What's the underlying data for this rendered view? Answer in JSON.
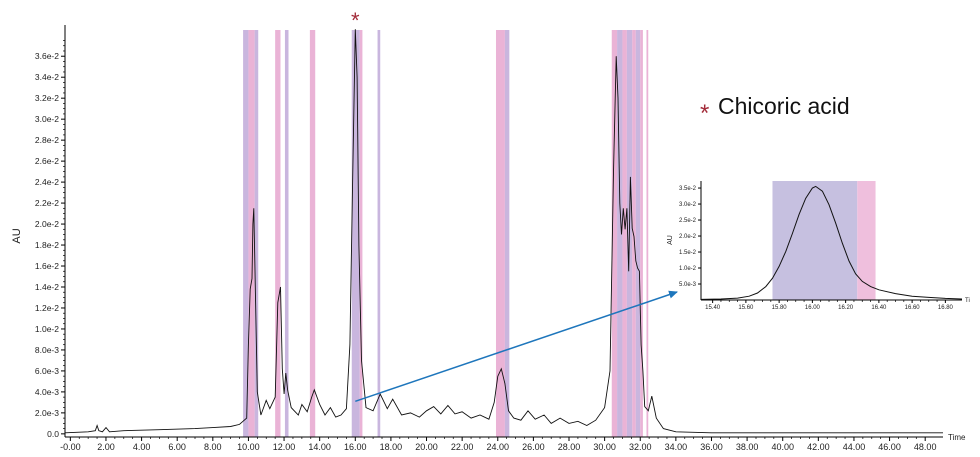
{
  "chart_data": [
    {
      "type": "line",
      "title": "",
      "xlabel": "Time",
      "ylabel": "AU",
      "xlim": [
        -0.3,
        49.0
      ],
      "ylim": [
        -0.0003,
        0.0385
      ],
      "x_ticks": [
        -0.0,
        2.0,
        4.0,
        6.0,
        8.0,
        10.0,
        12.0,
        14.0,
        16.0,
        18.0,
        20.0,
        22.0,
        24.0,
        26.0,
        28.0,
        30.0,
        32.0,
        34.0,
        36.0,
        38.0,
        40.0,
        42.0,
        44.0,
        46.0,
        48.0
      ],
      "x_tick_labels": [
        "-0.00",
        "2.00",
        "4.00",
        "6.00",
        "8.00",
        "10.00",
        "12.00",
        "14.00",
        "16.00",
        "18.00",
        "20.00",
        "22.00",
        "24.00",
        "26.00",
        "28.00",
        "30.00",
        "32.00",
        "34.00",
        "36.00",
        "38.00",
        "40.00",
        "42.00",
        "44.00",
        "46.00",
        "48.00"
      ],
      "y_ticks": [
        0.0,
        0.002,
        0.004,
        0.006,
        0.008,
        0.01,
        0.012,
        0.014,
        0.016,
        0.018,
        0.02,
        0.022,
        0.024,
        0.026,
        0.028,
        0.03,
        0.032,
        0.034,
        0.036
      ],
      "y_tick_labels": [
        "0.0",
        "2.0e-3",
        "4.0e-3",
        "6.0e-3",
        "8.0e-3",
        "1.0e-2",
        "1.2e-2",
        "1.4e-2",
        "1.6e-2",
        "1.8e-2",
        "2.0e-2",
        "2.2e-2",
        "2.4e-2",
        "2.6e-2",
        "2.8e-2",
        "3.0e-2",
        "3.2e-2",
        "3.4e-2",
        "3.6e-2"
      ],
      "series": [
        {
          "name": "",
          "color": "#111111",
          "x": [
            -0.3,
            1.0,
            1.4,
            1.5,
            1.6,
            1.8,
            2.0,
            2.2,
            3.0,
            5.0,
            7.0,
            8.0,
            9.0,
            9.5,
            9.9,
            10.0,
            10.1,
            10.2,
            10.25,
            10.3,
            10.4,
            10.5,
            10.7,
            11.0,
            11.2,
            11.5,
            11.65,
            11.8,
            11.9,
            12.0,
            12.1,
            12.2,
            12.4,
            12.8,
            13.0,
            13.3,
            13.55,
            13.7,
            14.0,
            14.3,
            14.6,
            14.9,
            15.2,
            15.5,
            15.7,
            15.85,
            16.0,
            16.1,
            16.2,
            16.35,
            16.6,
            17.0,
            17.4,
            17.8,
            18.1,
            18.6,
            19.1,
            19.6,
            20.0,
            20.4,
            20.8,
            21.2,
            21.6,
            22.0,
            22.5,
            23.0,
            23.5,
            23.8,
            24.0,
            24.2,
            24.4,
            24.6,
            24.9,
            25.3,
            25.7,
            26.1,
            26.6,
            27.0,
            27.5,
            28.0,
            28.5,
            29.0,
            29.5,
            30.0,
            30.3,
            30.5,
            30.65,
            30.75,
            30.85,
            30.95,
            31.05,
            31.15,
            31.25,
            31.35,
            31.45,
            31.55,
            31.65,
            31.75,
            31.85,
            31.95,
            32.05,
            32.15,
            32.25,
            32.45,
            32.65,
            32.9,
            33.3,
            34.0,
            36.0,
            40.0,
            44.0,
            48.0,
            49.0
          ],
          "y": [
            0.0001,
            0.0002,
            0.0003,
            0.0008,
            0.0003,
            0.0002,
            0.0006,
            0.0002,
            0.0003,
            0.0004,
            0.0005,
            0.0006,
            0.0007,
            0.0009,
            0.0015,
            0.0085,
            0.0138,
            0.0148,
            0.02,
            0.0215,
            0.0125,
            0.004,
            0.0018,
            0.0032,
            0.0024,
            0.0035,
            0.0125,
            0.014,
            0.0062,
            0.0038,
            0.0058,
            0.0042,
            0.0025,
            0.0018,
            0.0028,
            0.0021,
            0.0035,
            0.0042,
            0.0028,
            0.0018,
            0.0025,
            0.0016,
            0.0018,
            0.0024,
            0.0085,
            0.024,
            0.0418,
            0.034,
            0.018,
            0.007,
            0.0025,
            0.0022,
            0.0038,
            0.0024,
            0.0033,
            0.0018,
            0.002,
            0.0016,
            0.0022,
            0.0026,
            0.0019,
            0.0027,
            0.0019,
            0.0021,
            0.0015,
            0.0018,
            0.0014,
            0.003,
            0.0055,
            0.0062,
            0.0048,
            0.0022,
            0.0015,
            0.0013,
            0.0022,
            0.0014,
            0.0018,
            0.001,
            0.0015,
            0.001,
            0.0012,
            0.0008,
            0.0013,
            0.0025,
            0.006,
            0.025,
            0.036,
            0.032,
            0.022,
            0.019,
            0.0215,
            0.0195,
            0.0215,
            0.0155,
            0.0245,
            0.0196,
            0.0188,
            0.0165,
            0.0158,
            0.0155,
            0.0085,
            0.006,
            0.0026,
            0.0022,
            0.0036,
            0.0015,
            0.0005,
            0.0002,
            0.0001,
            0.0001,
            0.0001,
            0.0001,
            0.0001
          ]
        }
      ],
      "highlight_bands": [
        {
          "x0": 9.7,
          "x1": 10.0,
          "color": "#bfa9d8"
        },
        {
          "x0": 10.0,
          "x1": 10.35,
          "color": "#e6a6cf"
        },
        {
          "x0": 10.35,
          "x1": 10.55,
          "color": "#bfa9d8"
        },
        {
          "x0": 11.5,
          "x1": 11.8,
          "color": "#e6a6cf"
        },
        {
          "x0": 12.05,
          "x1": 12.25,
          "color": "#bfa9d8"
        },
        {
          "x0": 13.45,
          "x1": 13.75,
          "color": "#e6a6cf"
        },
        {
          "x0": 15.8,
          "x1": 16.25,
          "color": "#bfa9d8"
        },
        {
          "x0": 16.25,
          "x1": 16.4,
          "color": "#e6a6cf"
        },
        {
          "x0": 17.25,
          "x1": 17.4,
          "color": "#bfa9d8"
        },
        {
          "x0": 23.9,
          "x1": 24.4,
          "color": "#e6a6cf"
        },
        {
          "x0": 24.4,
          "x1": 24.65,
          "color": "#bfa9d8"
        },
        {
          "x0": 30.4,
          "x1": 30.7,
          "color": "#e6a6cf"
        },
        {
          "x0": 30.7,
          "x1": 31.0,
          "color": "#bfa9d8"
        },
        {
          "x0": 31.0,
          "x1": 31.25,
          "color": "#e6a6cf"
        },
        {
          "x0": 31.25,
          "x1": 31.55,
          "color": "#bfa9d8"
        },
        {
          "x0": 31.55,
          "x1": 31.75,
          "color": "#e6a6cf"
        },
        {
          "x0": 31.75,
          "x1": 32.0,
          "color": "#bfa9d8"
        },
        {
          "x0": 32.0,
          "x1": 32.15,
          "color": "#e6a6cf"
        },
        {
          "x0": 32.35,
          "x1": 32.45,
          "color": "#e6a6cf"
        }
      ],
      "marker": {
        "symbol": "*",
        "x": 16.0,
        "color": "#a32c3a"
      },
      "grid": false,
      "legend": "none"
    },
    {
      "type": "line",
      "title": "",
      "xlabel": "Ti",
      "ylabel": "AU",
      "xlim": [
        15.33,
        16.9
      ],
      "ylim": [
        0.0,
        0.0372
      ],
      "x_ticks": [
        15.4,
        15.6,
        15.8,
        16.0,
        16.2,
        16.4,
        16.6,
        16.8
      ],
      "x_tick_labels": [
        "15.40",
        "15.60",
        "15.80",
        "16.00",
        "16.20",
        "16.40",
        "16.60",
        "16.80"
      ],
      "y_ticks": [
        0.005,
        0.01,
        0.015,
        0.02,
        0.025,
        0.03,
        0.035
      ],
      "y_tick_labels": [
        "5.0e-3",
        "1.0e-2",
        "1.5e-2",
        "2.0e-2",
        "2.5e-2",
        "3.0e-2",
        "3.5e-2"
      ],
      "series": [
        {
          "name": "",
          "color": "#111111",
          "x": [
            15.33,
            15.45,
            15.55,
            15.62,
            15.67,
            15.72,
            15.76,
            15.8,
            15.84,
            15.88,
            15.92,
            15.96,
            16.0,
            16.02,
            16.06,
            16.1,
            16.14,
            16.18,
            16.22,
            16.26,
            16.3,
            16.35,
            16.4,
            16.5,
            16.6,
            16.7,
            16.8,
            16.9
          ],
          "y": [
            0.0002,
            0.0003,
            0.0006,
            0.0012,
            0.0022,
            0.0042,
            0.0068,
            0.0105,
            0.0152,
            0.0208,
            0.0268,
            0.0318,
            0.035,
            0.0355,
            0.034,
            0.0298,
            0.024,
            0.0178,
            0.0122,
            0.0082,
            0.0058,
            0.0042,
            0.0032,
            0.002,
            0.0012,
            0.0008,
            0.0005,
            0.0003
          ]
        }
      ],
      "highlight_bands": [
        {
          "x0": 15.76,
          "x1": 16.27,
          "color": "#c6c0e0"
        },
        {
          "x0": 16.27,
          "x1": 16.38,
          "color": "#efbfdd"
        }
      ],
      "grid": false,
      "legend": "none"
    }
  ],
  "legend_note": {
    "symbol": "*",
    "text": "Chicoric acid",
    "symbol_color": "#a32c3a"
  },
  "arrow": {
    "from_chart": 0,
    "from_x": 16.0,
    "from_y": 0.0031,
    "to_chart": 1,
    "color": "#1e76bc"
  }
}
